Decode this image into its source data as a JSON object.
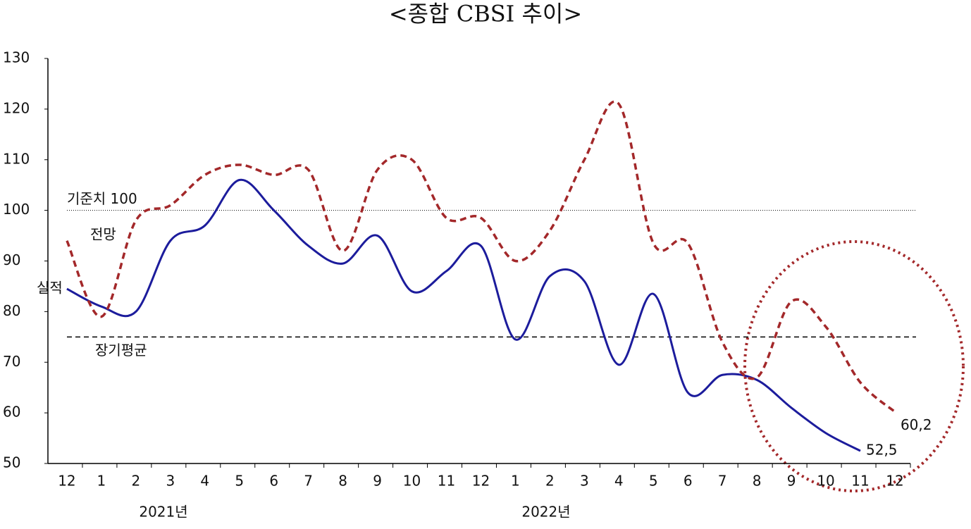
{
  "chart_data": {
    "type": "line",
    "title": "<종합 CBSI 추이>",
    "categories": [
      "12",
      "1",
      "2",
      "3",
      "4",
      "5",
      "6",
      "7",
      "8",
      "9",
      "10",
      "11",
      "12",
      "1",
      "2",
      "3",
      "4",
      "5",
      "6",
      "7",
      "8",
      "9",
      "10",
      "11",
      "12"
    ],
    "years": [
      "2021년",
      "2022년"
    ],
    "series": [
      {
        "name": "실적",
        "color": "#1c1c9c",
        "dash": false,
        "values": [
          84.5,
          81,
          80,
          94,
          97,
          106,
          100,
          93,
          89.5,
          95,
          84,
          88,
          93,
          74.5,
          87,
          86,
          69.5,
          83.5,
          64,
          67.5,
          66.5,
          61,
          56,
          52.5,
          null
        ],
        "value_labels": [
          null,
          null,
          null,
          null,
          null,
          null,
          null,
          null,
          null,
          null,
          null,
          null,
          null,
          null,
          null,
          null,
          null,
          null,
          null,
          null,
          null,
          null,
          null,
          "52,5",
          null
        ]
      },
      {
        "name": "전망",
        "color": "#a3282a",
        "dash": true,
        "values": [
          94,
          79,
          98,
          101,
          107,
          109,
          107,
          108,
          92,
          108,
          110,
          98.5,
          98.5,
          90,
          96,
          110,
          121,
          93.5,
          93.5,
          74,
          67,
          82,
          77,
          66,
          60.2
        ],
        "value_labels": [
          null,
          null,
          null,
          null,
          null,
          null,
          null,
          null,
          null,
          null,
          null,
          null,
          null,
          null,
          null,
          null,
          null,
          null,
          null,
          null,
          null,
          null,
          null,
          null,
          "60,2"
        ]
      }
    ],
    "reference_lines": [
      {
        "label": "기준치 100",
        "value": 100,
        "style": "dotted"
      },
      {
        "label": "장기평균",
        "value": 75,
        "style": "dashed"
      }
    ],
    "ylim": [
      50,
      130
    ],
    "yticks": [
      50,
      60,
      70,
      80,
      90,
      100,
      110,
      120,
      130
    ]
  }
}
